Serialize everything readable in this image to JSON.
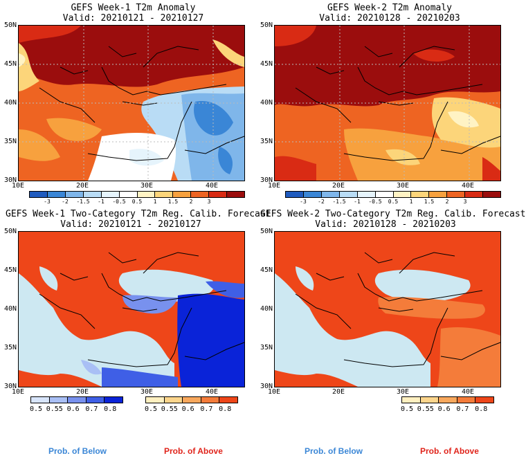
{
  "panels": [
    {
      "id": "p1",
      "title_line1": "GEFS Week-1 T2m Anomaly",
      "title_line2": "Valid: 20210121 - 20210127"
    },
    {
      "id": "p2",
      "title_line1": "GEFS Week-2 T2m Anomaly",
      "title_line2": "Valid: 20210128 - 20210203"
    },
    {
      "id": "p3",
      "title_line1": "GEFS Week-1 Two-Category T2m Reg. Calib. Forecast",
      "title_line2": "Valid: 20210121 - 20210127"
    },
    {
      "id": "p4",
      "title_line1": "GEFS Week-2 Two-Category T2m Reg. Calib. Forecast",
      "title_line2": "Valid: 20210128 - 20210203"
    }
  ],
  "lat_labels": [
    "50N",
    "45N",
    "40N",
    "35N",
    "30N"
  ],
  "lon_labels": [
    "10E",
    "20E",
    "30E",
    "40E"
  ],
  "anomaly_colorbar": {
    "colors": [
      "#1f5bbf",
      "#3a86d6",
      "#7fb6ea",
      "#b9dcf5",
      "#e6f4fc",
      "#ffffff",
      "#fff3c4",
      "#fcd57a",
      "#f7a13e",
      "#ee6422",
      "#d92b14",
      "#9b0d0d"
    ],
    "labels": [
      "-3",
      "-2",
      "-1.5",
      "-1",
      "-0.5",
      "0.5",
      "1",
      "1.5",
      "2",
      "3"
    ]
  },
  "prob_below": {
    "colors": [
      "#d8e5fb",
      "#a9bff5",
      "#7891ee",
      "#3f5fe6",
      "#0a23d8"
    ],
    "labels": [
      "0.5",
      "0.55",
      "0.6",
      "0.7",
      "0.8"
    ]
  },
  "prob_above": {
    "colors": [
      "#fff0c0",
      "#fcd58c",
      "#f8a85d",
      "#f47c3a",
      "#ee4619"
    ],
    "labels": [
      "0.5",
      "0.55",
      "0.6",
      "0.7",
      "0.8"
    ]
  },
  "captions": {
    "below": "Prob. of Below",
    "above": "Prob. of Above",
    "below_color": "#3a86d6",
    "above_color": "#e0241b"
  },
  "map_colors": {
    "sea_light": "#cde8f2",
    "anom_deep": "#9b0d0d",
    "anom_red": "#d92b14",
    "anom_orange": "#ee6422",
    "anom_light": "#f7a13e",
    "prob_land": "#ee4619",
    "prob_blue": "#0a23d8",
    "prob_midblue": "#3f5fe6"
  }
}
